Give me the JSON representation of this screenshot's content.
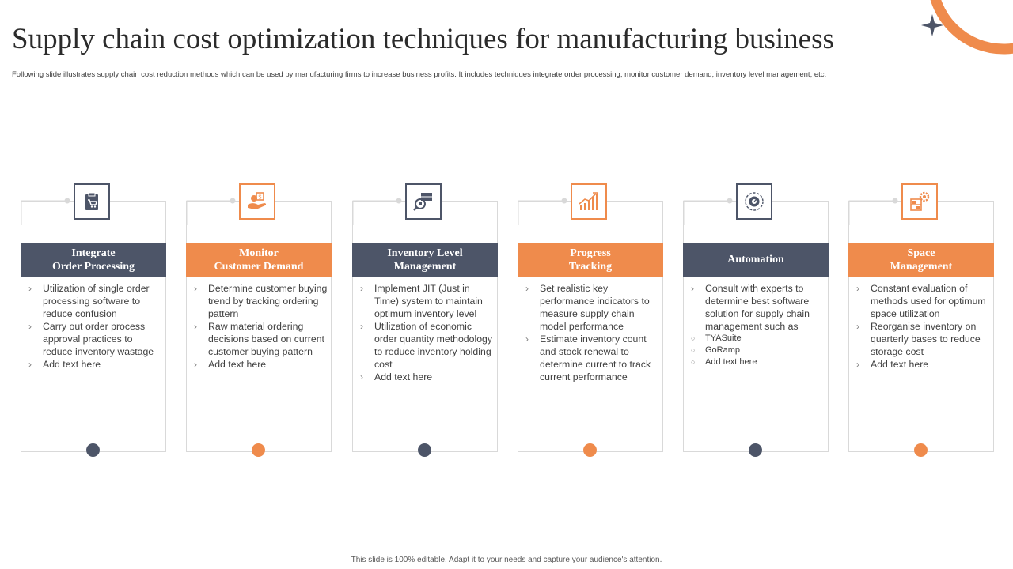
{
  "title": "Supply chain cost optimization techniques for manufacturing business",
  "subtitle": "Following slide illustrates supply chain cost reduction methods which can be used by manufacturing firms to increase business profits. It includes techniques integrate order processing, monitor customer demand,  inventory level management,  etc.",
  "footer": "This slide is 100% editable.  Adapt it to your needs and capture your audience's attention.",
  "colors": {
    "navy": "#4d5568",
    "orange": "#ef8b4c",
    "star": "#4d5568"
  },
  "columns": [
    {
      "header_line1": "Integrate",
      "header_line2": "Order Processing",
      "theme": "navy",
      "icon": "clipboard-cart-icon",
      "bullets": [
        "Utilization of single order processing software to reduce confusion",
        "Carry out order process approval  practices to reduce inventory wastage",
        "Add text here"
      ]
    },
    {
      "header_line1": "Monitor",
      "header_line2": "Customer Demand",
      "theme": "orange",
      "icon": "hand-money-icon",
      "bullets": [
        "Determine customer buying trend by tracking ordering pattern",
        "Raw material ordering decisions based on current customer buying pattern",
        "Add text here"
      ]
    },
    {
      "header_line1": "Inventory Level",
      "header_line2": "Management",
      "theme": "navy",
      "icon": "inventory-search-icon",
      "bullets": [
        "Implement JIT (Just in Time) system to maintain optimum inventory level",
        "Utilization of economic order quantity methodology to reduce inventory holding cost",
        "Add text here"
      ]
    },
    {
      "header_line1": "Progress",
      "header_line2": "Tracking",
      "theme": "orange",
      "icon": "growth-chart-icon",
      "bullets": [
        "Set realistic key performance indicators to measure supply chain model performance",
        "Estimate inventory count and stock renewal to determine current to track current performance"
      ]
    },
    {
      "header_line1": "Automation",
      "header_line2": "",
      "theme": "navy",
      "icon": "gear-automation-icon",
      "bullets": [
        "Consult with experts to determine best software solution for supply chain management such as"
      ],
      "sub_bullets": [
        "TYASuite",
        "GoRamp",
        "Add text here"
      ]
    },
    {
      "header_line1": "Space",
      "header_line2": "Management",
      "theme": "orange",
      "icon": "shelf-gear-icon",
      "bullets": [
        "Constant evaluation of methods used for optimum space utilization",
        "Reorganise inventory on quarterly bases to reduce storage cost",
        "Add text here"
      ]
    }
  ]
}
